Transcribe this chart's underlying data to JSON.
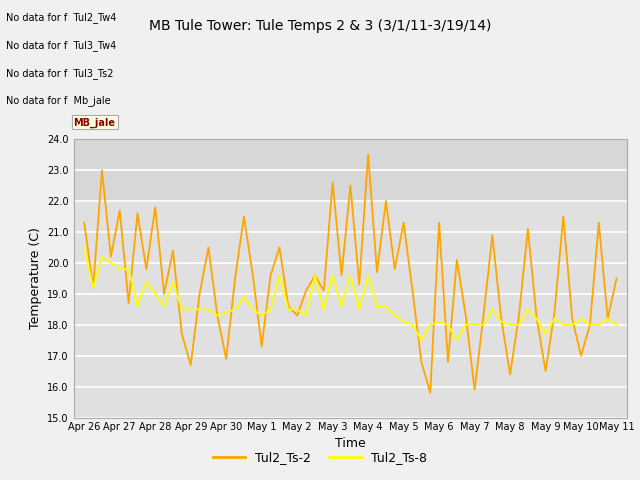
{
  "title": "MB Tule Tower: Tule Temps 2 & 3 (3/1/11-3/19/14)",
  "xlabel": "Time",
  "ylabel": "Temperature (C)",
  "ylim": [
    15.0,
    24.0
  ],
  "yticks": [
    15.0,
    16.0,
    17.0,
    18.0,
    19.0,
    20.0,
    21.0,
    22.0,
    23.0,
    24.0
  ],
  "xtick_labels": [
    "Apr 26",
    "Apr 27",
    "Apr 28",
    "Apr 29",
    "Apr 30",
    "May 1",
    "May 2",
    "May 3",
    "May 4",
    "May 5",
    "May 6",
    "May 7",
    "May 8",
    "May 9",
    "May 10",
    "May 11"
  ],
  "color_ts2": "#FFA500",
  "color_ts8": "#FFFF00",
  "legend_labels": [
    "Tul2_Ts-2",
    "Tul2_Ts-8"
  ],
  "no_data_texts": [
    "No data for f  Tul2_Tw4",
    "No data for f  Tul3_Tw4",
    "No data for f  Tul3_Ts2",
    "No data for f  Mb_jale"
  ],
  "fig_bg_color": "#f0f0f0",
  "plot_bg_color": "#e0e0e0",
  "stripe_light": "#e8e8e8",
  "stripe_dark": "#d8d8d8",
  "ts2_x": [
    0,
    0.25,
    0.5,
    0.75,
    1.0,
    1.25,
    1.5,
    1.75,
    2.0,
    2.25,
    2.5,
    2.75,
    3.0,
    3.25,
    3.5,
    3.75,
    4.0,
    4.25,
    4.5,
    4.75,
    5.0,
    5.25,
    5.5,
    5.75,
    6.0,
    6.25,
    6.5,
    6.75,
    7.0,
    7.25,
    7.5,
    7.75,
    8.0,
    8.25,
    8.5,
    8.75,
    9.0,
    9.25,
    9.5,
    9.75,
    10.0,
    10.25,
    10.5,
    10.75,
    11.0,
    11.25,
    11.5,
    11.75,
    12.0,
    12.25,
    12.5,
    12.75,
    13.0,
    13.25,
    13.5,
    13.75,
    14.0,
    14.25,
    14.5,
    14.75,
    15.0
  ],
  "ts2_y": [
    21.3,
    19.2,
    23.0,
    20.2,
    21.7,
    18.7,
    21.6,
    19.8,
    21.8,
    19.0,
    20.4,
    17.7,
    16.7,
    19.0,
    20.5,
    18.3,
    16.9,
    19.5,
    21.5,
    19.6,
    17.3,
    19.6,
    20.5,
    18.6,
    18.3,
    19.1,
    19.6,
    19.1,
    22.6,
    19.6,
    22.5,
    19.3,
    23.5,
    19.7,
    22.0,
    19.8,
    21.3,
    19.1,
    16.8,
    15.8,
    21.3,
    16.8,
    20.1,
    18.3,
    15.9,
    18.3,
    20.9,
    18.2,
    16.4,
    18.3,
    21.1,
    18.2,
    16.5,
    18.4,
    21.5,
    18.2,
    17.0,
    18.0,
    21.3,
    18.2,
    19.5
  ],
  "ts8_x": [
    0,
    0.25,
    0.5,
    0.75,
    1.0,
    1.25,
    1.5,
    1.75,
    2.0,
    2.25,
    2.5,
    2.75,
    3.0,
    3.25,
    3.5,
    3.75,
    4.0,
    4.25,
    4.5,
    4.75,
    5.0,
    5.25,
    5.5,
    5.75,
    6.0,
    6.25,
    6.5,
    6.75,
    7.0,
    7.25,
    7.5,
    7.75,
    8.0,
    8.25,
    8.5,
    8.75,
    9.0,
    9.25,
    9.5,
    9.75,
    10.0,
    10.25,
    10.5,
    10.75,
    11.0,
    11.25,
    11.5,
    11.75,
    12.0,
    12.25,
    12.5,
    12.75,
    13.0,
    13.25,
    13.5,
    13.75,
    14.0,
    14.25,
    14.5,
    14.75,
    15.0
  ],
  "ts8_y": [
    20.5,
    19.2,
    20.2,
    20.0,
    19.8,
    19.8,
    18.6,
    19.4,
    19.0,
    18.6,
    19.4,
    18.5,
    18.5,
    18.5,
    18.5,
    18.3,
    18.4,
    18.5,
    18.9,
    18.5,
    18.3,
    18.5,
    19.6,
    18.5,
    18.5,
    18.3,
    19.6,
    18.5,
    19.6,
    18.6,
    19.6,
    18.5,
    19.6,
    18.6,
    18.6,
    18.3,
    18.1,
    18.0,
    17.5,
    18.0,
    18.1,
    18.0,
    17.5,
    18.0,
    18.0,
    18.0,
    18.5,
    18.1,
    18.0,
    18.0,
    18.5,
    18.2,
    17.7,
    18.2,
    18.0,
    18.0,
    18.2,
    18.0,
    18.0,
    18.2,
    18.0
  ]
}
